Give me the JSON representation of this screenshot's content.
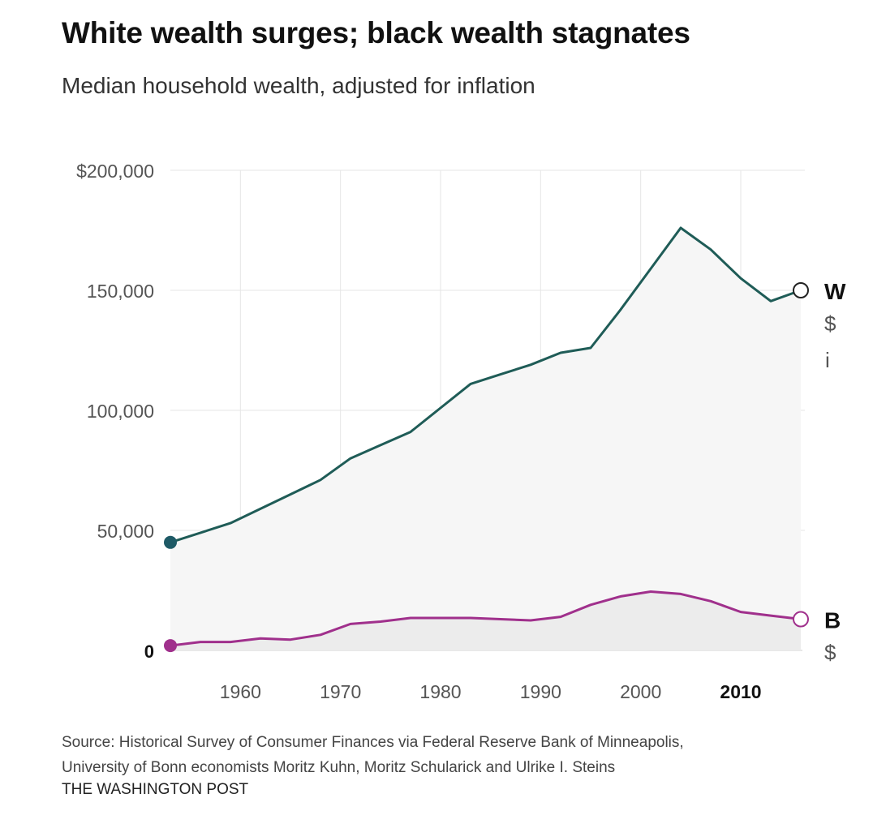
{
  "title": "White wealth surges; black wealth stagnates",
  "subtitle": "Median household wealth, adjusted for inflation",
  "source": {
    "line1": "Source: Historical Survey of Consumer Finances via Federal Reserve Bank of Minneapolis,",
    "line2": "University of Bonn economists Moritz Kuhn, Moritz Schularick and Ulrike I. Steins"
  },
  "credit": "THE WASHINGTON POST",
  "colors": {
    "white_series": "#1f5c57",
    "black_series": "#a0308c",
    "start_dot_white": "#1e5a66",
    "start_dot_black": "#a0308c",
    "area_fill": "#f6f6f6",
    "area_fill_black": "#ececec",
    "grid": "#e6e6e6"
  },
  "chart_data": {
    "type": "line",
    "title": "White wealth surges; black wealth stagnates",
    "subtitle": "Median household wealth, adjusted for inflation",
    "xlabel": "",
    "ylabel": "",
    "xlim": [
      1953,
      2016
    ],
    "ylim": [
      0,
      200000
    ],
    "x_ticks": [
      {
        "value": 1960,
        "label": "1960",
        "bold": false
      },
      {
        "value": 1970,
        "label": "1970",
        "bold": false
      },
      {
        "value": 1980,
        "label": "1980",
        "bold": false
      },
      {
        "value": 1990,
        "label": "1990",
        "bold": false
      },
      {
        "value": 2000,
        "label": "2000",
        "bold": false
      },
      {
        "value": 2010,
        "label": "2010",
        "bold": true
      }
    ],
    "y_ticks": [
      {
        "value": 0,
        "label": "0",
        "bold": true
      },
      {
        "value": 50000,
        "label": "50,000",
        "bold": false
      },
      {
        "value": 100000,
        "label": "100,000",
        "bold": false
      },
      {
        "value": 150000,
        "label": "150,000",
        "bold": false
      },
      {
        "value": 200000,
        "label": "$200,000",
        "bold": false
      }
    ],
    "series": [
      {
        "name": "White",
        "label_visible": "W",
        "value_line_visible": "$",
        "extra_line_visible": "i",
        "color": "#1f5c57",
        "x": [
          1953,
          1959,
          1962,
          1965,
          1968,
          1971,
          1974,
          1977,
          1980,
          1983,
          1986,
          1989,
          1992,
          1995,
          1998,
          2001,
          2004,
          2007,
          2010,
          2013,
          2016
        ],
        "y": [
          45000,
          53000,
          59000,
          65000,
          71000,
          80000,
          85500,
          91000,
          101000,
          111000,
          115000,
          119000,
          124000,
          126000,
          142000,
          159000,
          176000,
          167000,
          155000,
          145500,
          150000
        ]
      },
      {
        "name": "Black",
        "label_visible": "B",
        "value_line_visible": "$",
        "color": "#a0308c",
        "x": [
          1953,
          1956,
          1959,
          1962,
          1965,
          1968,
          1971,
          1974,
          1977,
          1980,
          1983,
          1986,
          1989,
          1992,
          1995,
          1998,
          2001,
          2004,
          2007,
          2010,
          2013,
          2016
        ],
        "y": [
          2000,
          3500,
          3500,
          5000,
          4500,
          6500,
          11000,
          12000,
          13500,
          13500,
          13500,
          13000,
          12500,
          14000,
          19000,
          22500,
          24500,
          23500,
          20500,
          16000,
          14500,
          13000
        ]
      }
    ],
    "annotations": [
      {
        "series": "White",
        "year": 2016,
        "value": 150000,
        "marker": "open circle"
      },
      {
        "series": "Black",
        "year": 2016,
        "value": 13000,
        "marker": "open circle"
      }
    ]
  }
}
